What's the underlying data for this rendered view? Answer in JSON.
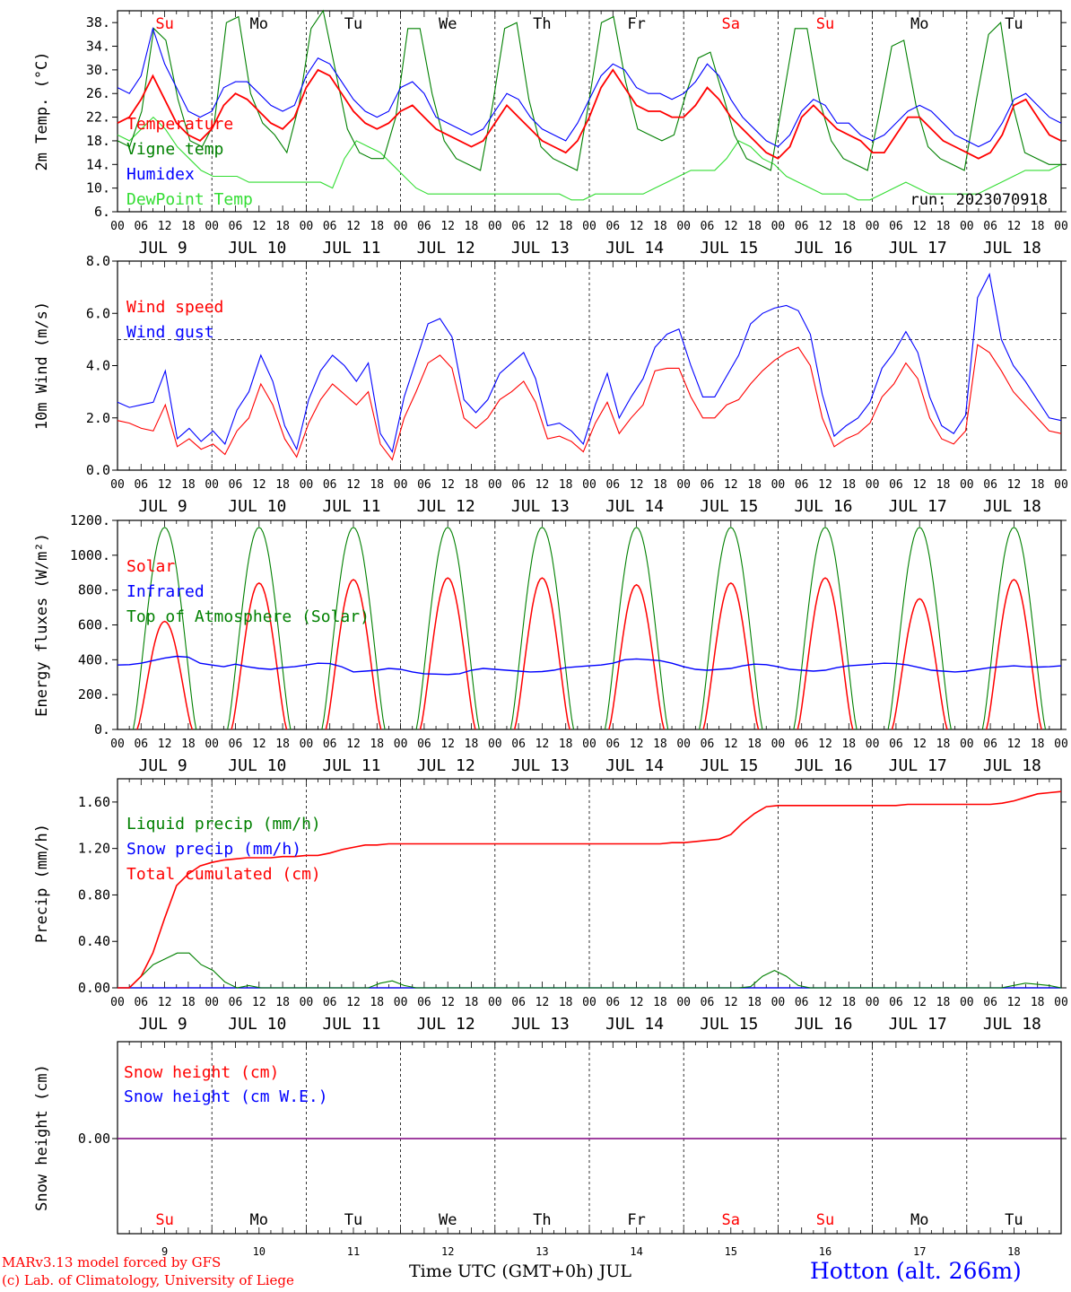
{
  "footer": {
    "credit_line1": "MARv3.13 model forced by GFS",
    "credit_line2": "(c) Lab. of Climatology, University of Liege",
    "xaxis_title": "Time UTC (GMT+0h) JUL",
    "station": "Hotton (alt. 266m)"
  },
  "colors": {
    "red": "#ff0000",
    "green": "#008000",
    "blue": "#0000ff",
    "lightgreen": "#33dd33",
    "purple": "#800080"
  },
  "common": {
    "hour_ticks": [
      "00",
      "06",
      "12",
      "18"
    ],
    "days": [
      "JUL  9",
      "JUL 10",
      "JUL 11",
      "JUL 12",
      "JUL 13",
      "JUL 14",
      "JUL 15",
      "JUL 16",
      "JUL 17",
      "JUL 18"
    ],
    "weekdays": [
      "Su",
      "Mo",
      "Tu",
      "We",
      "Th",
      "Fr",
      "Sa",
      "Su",
      "Mo",
      "Tu"
    ],
    "weekday_colors": [
      "#ff0000",
      "#000000",
      "#000000",
      "#000000",
      "#000000",
      "#000000",
      "#ff0000",
      "#ff0000",
      "#000000",
      "#000000"
    ],
    "day_numbers": [
      "9",
      "10",
      "11",
      "12",
      "13",
      "14",
      "15",
      "16",
      "17",
      "18"
    ]
  },
  "chart_data": [
    {
      "type": "line",
      "ylabel": "2m Temp. (°C)",
      "ylim": [
        6,
        40
      ],
      "yticks": [
        "6.",
        "10.",
        "14.",
        "18.",
        "22.",
        "26.",
        "30.",
        "34.",
        "38."
      ],
      "annotation": "run: 2023070918",
      "series": [
        {
          "name": "Temperature",
          "color": "#ff0000",
          "values": [
            21,
            22,
            25,
            29,
            25,
            21,
            19,
            18,
            20,
            24,
            26,
            25,
            23,
            21,
            20,
            22,
            27,
            30,
            29,
            26,
            23,
            21,
            20,
            21,
            23,
            24,
            22,
            20,
            19,
            18,
            17,
            18,
            21,
            24,
            22,
            20,
            18,
            17,
            16,
            18,
            22,
            27,
            30,
            27,
            24,
            23,
            23,
            22,
            22,
            24,
            27,
            25,
            22,
            20,
            18,
            16,
            15,
            17,
            22,
            24,
            22,
            20,
            19,
            18,
            16,
            16,
            19,
            22,
            22,
            20,
            18,
            17,
            16,
            15,
            16,
            19,
            24,
            25,
            22,
            19,
            18
          ]
        },
        {
          "name": "Vigne temp",
          "color": "#008000",
          "values": [
            18,
            17,
            23,
            37,
            35,
            25,
            18,
            17,
            21,
            38,
            39,
            26,
            21,
            19,
            16,
            24,
            37,
            40,
            30,
            20,
            16,
            15,
            15,
            22,
            37,
            37,
            26,
            18,
            15,
            14,
            13,
            24,
            37,
            38,
            25,
            17,
            15,
            14,
            13,
            25,
            38,
            39,
            28,
            20,
            19,
            18,
            19,
            26,
            32,
            33,
            26,
            19,
            15,
            14,
            13,
            25,
            37,
            37,
            25,
            18,
            15,
            14,
            13,
            23,
            34,
            35,
            24,
            17,
            15,
            14,
            13,
            25,
            36,
            38,
            24,
            16,
            15,
            14,
            14
          ]
        },
        {
          "name": "Humidex",
          "color": "#0000ff",
          "values": [
            27,
            26,
            29,
            37,
            31,
            27,
            23,
            22,
            23,
            27,
            28,
            28,
            26,
            24,
            23,
            24,
            29,
            32,
            31,
            28,
            25,
            23,
            22,
            23,
            27,
            28,
            26,
            22,
            21,
            20,
            19,
            20,
            23,
            26,
            25,
            22,
            20,
            19,
            18,
            21,
            25,
            29,
            31,
            30,
            27,
            26,
            26,
            25,
            26,
            28,
            31,
            29,
            25,
            22,
            20,
            18,
            17,
            19,
            23,
            25,
            24,
            21,
            21,
            19,
            18,
            19,
            21,
            23,
            24,
            23,
            21,
            19,
            18,
            17,
            18,
            21,
            25,
            26,
            24,
            22,
            21
          ]
        },
        {
          "name": "DewPoint Temp",
          "color": "#33dd33",
          "values": [
            19,
            18,
            20,
            22,
            20,
            17,
            15,
            13,
            12,
            12,
            12,
            11,
            11,
            11,
            11,
            11,
            11,
            11,
            10,
            15,
            18,
            17,
            16,
            14,
            12,
            10,
            9,
            9,
            9,
            9,
            9,
            9,
            9,
            9,
            9,
            9,
            9,
            9,
            8,
            8,
            9,
            9,
            9,
            9,
            9,
            10,
            11,
            12,
            13,
            13,
            13,
            15,
            18,
            17,
            15,
            14,
            12,
            11,
            10,
            9,
            9,
            9,
            8,
            8,
            9,
            10,
            11,
            10,
            9,
            9,
            9,
            9,
            9,
            10,
            11,
            12,
            13,
            13,
            13,
            14
          ]
        }
      ]
    },
    {
      "type": "line",
      "ylabel": "10m Wind (m/s)",
      "ylim": [
        0,
        8
      ],
      "yticks": [
        "0.0",
        "2.0",
        "4.0",
        "6.0",
        "8.0"
      ],
      "reference_line": 5,
      "series": [
        {
          "name": "Wind speed",
          "color": "#ff0000",
          "values": [
            1.9,
            1.8,
            1.6,
            1.5,
            2.5,
            0.9,
            1.2,
            0.8,
            1.0,
            0.6,
            1.5,
            2.0,
            3.3,
            2.5,
            1.2,
            0.5,
            1.8,
            2.7,
            3.3,
            2.9,
            2.5,
            3.0,
            1.0,
            0.4,
            2.0,
            3.0,
            4.1,
            4.4,
            3.9,
            2.0,
            1.6,
            2.0,
            2.7,
            3.0,
            3.4,
            2.6,
            1.2,
            1.3,
            1.1,
            0.7,
            1.8,
            2.6,
            1.4,
            2.0,
            2.5,
            3.8,
            3.9,
            3.9,
            2.8,
            2.0,
            2.0,
            2.5,
            2.7,
            3.3,
            3.8,
            4.2,
            4.5,
            4.7,
            4.0,
            2.0,
            0.9,
            1.2,
            1.4,
            1.8,
            2.8,
            3.3,
            4.1,
            3.5,
            2.0,
            1.2,
            1.0,
            1.5,
            4.8,
            4.5,
            3.8,
            3.0,
            2.5,
            2.0,
            1.5,
            1.4
          ]
        },
        {
          "name": "Wind gust",
          "color": "#0000ff",
          "values": [
            2.6,
            2.4,
            2.5,
            2.6,
            3.8,
            1.2,
            1.6,
            1.1,
            1.5,
            1.0,
            2.3,
            3.0,
            4.4,
            3.4,
            1.7,
            0.8,
            2.7,
            3.8,
            4.4,
            4.0,
            3.4,
            4.1,
            1.4,
            0.7,
            2.8,
            4.2,
            5.6,
            5.8,
            5.1,
            2.7,
            2.2,
            2.7,
            3.7,
            4.1,
            4.5,
            3.5,
            1.7,
            1.8,
            1.5,
            1.0,
            2.5,
            3.7,
            2.0,
            2.8,
            3.5,
            4.7,
            5.2,
            5.4,
            4.0,
            2.8,
            2.8,
            3.6,
            4.4,
            5.6,
            6.0,
            6.2,
            6.3,
            6.1,
            5.2,
            2.9,
            1.3,
            1.7,
            2.0,
            2.6,
            3.9,
            4.5,
            5.3,
            4.5,
            2.8,
            1.7,
            1.4,
            2.1,
            6.6,
            7.5,
            5.0,
            4.0,
            3.4,
            2.7,
            2.0,
            1.9
          ]
        }
      ]
    },
    {
      "type": "line",
      "ylabel": "Energy fluxes (W/m²)",
      "ylim": [
        0,
        1200
      ],
      "yticks": [
        "0.",
        "200.",
        "400.",
        "600.",
        "800.",
        "1000.",
        "1200."
      ],
      "series": [
        {
          "name": "Solar",
          "color": "#ff0000",
          "peaks": [
            620,
            840,
            860,
            870,
            870,
            830,
            840,
            870,
            750,
            860
          ]
        },
        {
          "name": "Infrared",
          "color": "#0000ff",
          "values": [
            370,
            372,
            380,
            395,
            410,
            420,
            415,
            380,
            370,
            360,
            375,
            360,
            350,
            345,
            355,
            360,
            370,
            380,
            378,
            360,
            330,
            335,
            340,
            350,
            345,
            330,
            320,
            318,
            315,
            320,
            340,
            350,
            345,
            340,
            335,
            330,
            332,
            340,
            355,
            360,
            365,
            370,
            380,
            400,
            405,
            400,
            395,
            380,
            360,
            345,
            340,
            345,
            350,
            365,
            375,
            372,
            360,
            345,
            340,
            335,
            340,
            355,
            365,
            370,
            375,
            380,
            378,
            370,
            355,
            340,
            335,
            330,
            335,
            345,
            355,
            360,
            365,
            360,
            358,
            360,
            365
          ]
        },
        {
          "name": "Top of Atmosphere (Solar)",
          "color": "#008000",
          "peak": 1160
        }
      ]
    },
    {
      "type": "line",
      "ylabel": "Precip (mm/h)",
      "ylim": [
        0,
        1.8
      ],
      "yticks": [
        "0.00",
        "0.40",
        "0.80",
        "1.20",
        "1.60"
      ],
      "series": [
        {
          "name": "Liquid precip (mm/h)",
          "color": "#008000",
          "values": [
            0,
            0,
            0.1,
            0.2,
            0.25,
            0.3,
            0.3,
            0.2,
            0.15,
            0.05,
            0,
            0.02,
            0,
            0,
            0,
            0,
            0,
            0,
            0,
            0,
            0,
            0,
            0.04,
            0.06,
            0.02,
            0,
            0,
            0,
            0,
            0,
            0,
            0,
            0,
            0,
            0,
            0,
            0,
            0,
            0,
            0,
            0,
            0,
            0,
            0,
            0,
            0,
            0,
            0,
            0,
            0,
            0,
            0,
            0,
            0.01,
            0.1,
            0.15,
            0.1,
            0.02,
            0,
            0,
            0,
            0,
            0,
            0,
            0,
            0,
            0,
            0,
            0,
            0,
            0,
            0,
            0,
            0,
            0,
            0.02,
            0.04,
            0.03,
            0.02,
            0
          ]
        },
        {
          "name": "Snow precip (mm/h)",
          "color": "#0000ff",
          "values": [
            0,
            0,
            0,
            0,
            0,
            0,
            0,
            0,
            0,
            0,
            0,
            0,
            0,
            0,
            0,
            0,
            0,
            0,
            0,
            0,
            0,
            0,
            0,
            0,
            0,
            0,
            0,
            0,
            0,
            0,
            0,
            0,
            0,
            0,
            0,
            0,
            0,
            0,
            0,
            0,
            0,
            0,
            0,
            0,
            0,
            0,
            0,
            0,
            0,
            0,
            0,
            0,
            0,
            0,
            0,
            0,
            0,
            0,
            0,
            0,
            0,
            0,
            0,
            0,
            0,
            0,
            0,
            0,
            0,
            0,
            0,
            0,
            0,
            0,
            0,
            0,
            0,
            0,
            0,
            0
          ]
        },
        {
          "name": "Total cumulated (cm)",
          "color": "#ff0000",
          "values": [
            0,
            0,
            0.1,
            0.3,
            0.6,
            0.88,
            0.98,
            1.05,
            1.08,
            1.1,
            1.11,
            1.12,
            1.12,
            1.12,
            1.13,
            1.13,
            1.14,
            1.14,
            1.16,
            1.19,
            1.21,
            1.23,
            1.23,
            1.24,
            1.24,
            1.24,
            1.24,
            1.24,
            1.24,
            1.24,
            1.24,
            1.24,
            1.24,
            1.24,
            1.24,
            1.24,
            1.24,
            1.24,
            1.24,
            1.24,
            1.24,
            1.24,
            1.24,
            1.24,
            1.24,
            1.24,
            1.24,
            1.25,
            1.25,
            1.26,
            1.27,
            1.28,
            1.32,
            1.42,
            1.5,
            1.56,
            1.57,
            1.57,
            1.57,
            1.57,
            1.57,
            1.57,
            1.57,
            1.57,
            1.57,
            1.57,
            1.57,
            1.58,
            1.58,
            1.58,
            1.58,
            1.58,
            1.58,
            1.58,
            1.58,
            1.59,
            1.61,
            1.64,
            1.67,
            1.68,
            1.69
          ]
        }
      ]
    },
    {
      "type": "line",
      "ylabel": "Snow height (cm)",
      "yticks": [
        "0.00"
      ],
      "series": [
        {
          "name": "Snow height (cm)",
          "color": "#ff0000",
          "values": [
            0,
            0,
            0,
            0,
            0,
            0,
            0,
            0,
            0,
            0
          ]
        },
        {
          "name": "Snow height (cm W.E.)",
          "color": "#0000ff",
          "values": [
            0,
            0,
            0,
            0,
            0,
            0,
            0,
            0,
            0,
            0
          ]
        }
      ]
    }
  ]
}
